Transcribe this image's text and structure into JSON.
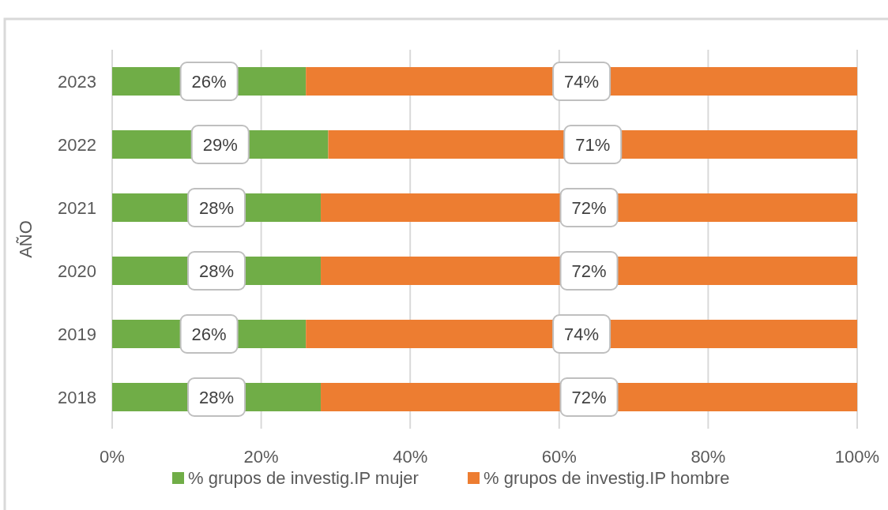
{
  "chart_data": {
    "type": "bar",
    "orientation": "horizontal",
    "stacked": true,
    "ylabel": "AÑO",
    "categories": [
      "2023",
      "2022",
      "2021",
      "2020",
      "2019",
      "2018"
    ],
    "series": [
      {
        "name": "% grupos de investig.IP mujer",
        "color": "#70ad47",
        "values": [
          26,
          29,
          28,
          28,
          26,
          28
        ],
        "value_labels": [
          "26%",
          "29%",
          "28%",
          "28%",
          "26%",
          "28%"
        ]
      },
      {
        "name": "% grupos de investig.IP hombre",
        "color": "#ed7d31",
        "values": [
          74,
          71,
          72,
          72,
          74,
          72
        ],
        "value_labels": [
          "74%",
          "71%",
          "72%",
          "72%",
          "74%",
          "72%"
        ]
      }
    ],
    "xlim": [
      0,
      100
    ],
    "xticks": [
      {
        "value": 0,
        "label": "0%"
      },
      {
        "value": 20,
        "label": "20%"
      },
      {
        "value": 40,
        "label": "40%"
      },
      {
        "value": 60,
        "label": "60%"
      },
      {
        "value": 80,
        "label": "80%"
      },
      {
        "value": 100,
        "label": "100%"
      }
    ],
    "grid": "x",
    "legend": "bottom"
  }
}
